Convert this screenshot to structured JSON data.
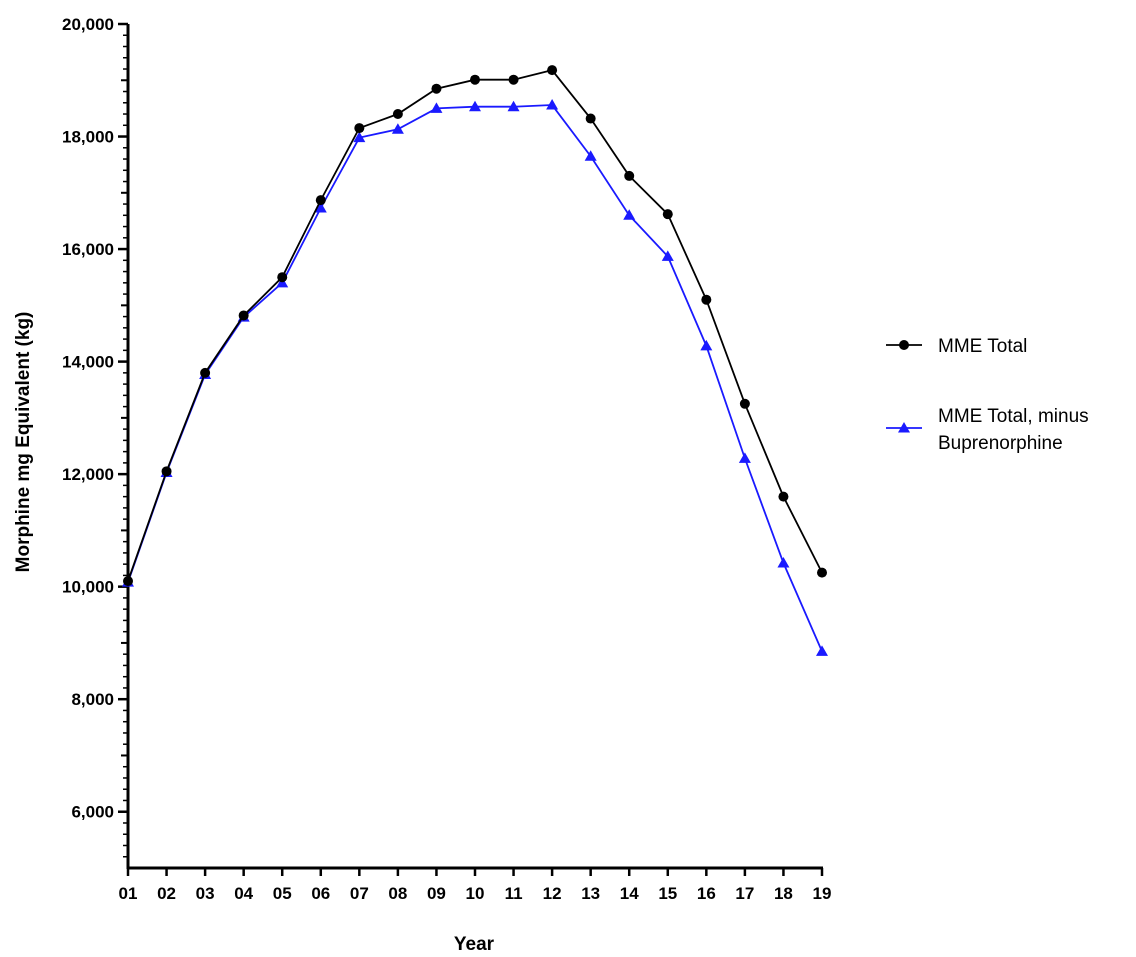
{
  "chart_data": {
    "type": "line",
    "title": "",
    "xlabel": "Year",
    "ylabel": "Morphine mg Equivalent (kg)",
    "categories": [
      "01",
      "02",
      "03",
      "04",
      "05",
      "06",
      "07",
      "08",
      "09",
      "10",
      "11",
      "12",
      "13",
      "14",
      "15",
      "16",
      "17",
      "18",
      "19"
    ],
    "ylim": [
      5000,
      20000
    ],
    "yticks": [
      6000,
      8000,
      10000,
      12000,
      14000,
      16000,
      18000,
      20000
    ],
    "ytick_labels": [
      "6,000",
      "8,000",
      "10,000",
      "12,000",
      "14,000",
      "16,000",
      "18,000",
      "20,000"
    ],
    "minor_tick_step": 200,
    "grid": false,
    "legend_position": "right",
    "series": [
      {
        "name": "MME Total",
        "color": "#000000",
        "marker": "circle",
        "values": [
          10100,
          12050,
          13800,
          14820,
          15500,
          16870,
          18150,
          18400,
          18850,
          19010,
          19010,
          19180,
          18320,
          17300,
          16620,
          15100,
          13250,
          11600,
          10250
        ]
      },
      {
        "name": "MME Total, minus Buprenorphine",
        "legend_lines": [
          "MME Total, minus",
          "Buprenorphine"
        ],
        "color": "#1a1aff",
        "marker": "triangle",
        "values": [
          10080,
          12030,
          13770,
          14790,
          15400,
          16730,
          17980,
          18130,
          18500,
          18530,
          18530,
          18560,
          17650,
          16600,
          15870,
          14280,
          12280,
          10420,
          8850
        ]
      }
    ]
  }
}
